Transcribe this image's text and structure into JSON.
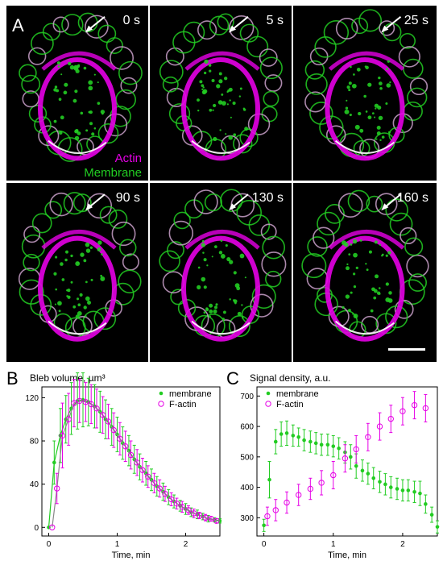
{
  "figure": {
    "panel_a_letter": "A",
    "panel_b_letter": "B",
    "panel_c_letter": "C",
    "channel_labels": {
      "actin": "Actin",
      "membrane": "Membrane"
    },
    "frames": [
      {
        "time": "0 s"
      },
      {
        "time": "5 s"
      },
      {
        "time": "25 s"
      },
      {
        "time": "90 s"
      },
      {
        "time": "130 s"
      },
      {
        "time": "160 s"
      }
    ]
  },
  "colors": {
    "membrane": "#22cc22",
    "actin": "#e600e6",
    "background": "#000000"
  },
  "chart_data": [
    {
      "type": "scatter",
      "title": "Bleb volume, µm³",
      "xlabel": "Time, min",
      "ylabel": "",
      "xlim": [
        -0.1,
        2.5
      ],
      "ylim": [
        -8,
        130
      ],
      "xticks": [
        "0",
        "1",
        "2"
      ],
      "yticks": [
        "0",
        "40",
        "80",
        "120"
      ],
      "legend_position": "top-right",
      "series": [
        {
          "name": "membrane",
          "marker": "filled-circle",
          "x": [
            0.0,
            0.08,
            0.17,
            0.25,
            0.33,
            0.42,
            0.5,
            0.58,
            0.67,
            0.75,
            0.83,
            0.92,
            1.0,
            1.08,
            1.17,
            1.25,
            1.33,
            1.42,
            1.5,
            1.58,
            1.67,
            1.75,
            1.83,
            1.92,
            2.0,
            2.08,
            2.17,
            2.25,
            2.33,
            2.42,
            2.5
          ],
          "y": [
            0,
            60,
            85,
            100,
            110,
            117,
            118,
            116,
            112,
            107,
            100,
            93,
            86,
            78,
            71,
            63,
            56,
            50,
            44,
            38,
            33,
            28,
            24,
            20,
            17,
            14,
            12,
            10,
            8,
            7,
            6
          ],
          "err": [
            0,
            20,
            25,
            22,
            24,
            26,
            25,
            22,
            20,
            19,
            18,
            17,
            16,
            15,
            14,
            13,
            12,
            11,
            10,
            9,
            8,
            7,
            6,
            5,
            5,
            4,
            4,
            3,
            3,
            2,
            2
          ]
        },
        {
          "name": "F-actin",
          "marker": "open-circle",
          "x": [
            0.05,
            0.12,
            0.2,
            0.29,
            0.37,
            0.45,
            0.54,
            0.62,
            0.7,
            0.79,
            0.87,
            0.95,
            1.04,
            1.12,
            1.2,
            1.29,
            1.37,
            1.45,
            1.54,
            1.62,
            1.7,
            1.79,
            1.87,
            1.95,
            2.04,
            2.12,
            2.2,
            2.29,
            2.37,
            2.45
          ],
          "y": [
            0,
            36,
            85,
            100,
            115,
            117,
            116,
            114,
            110,
            104,
            98,
            90,
            82,
            75,
            67,
            60,
            53,
            47,
            41,
            36,
            31,
            26,
            22,
            19,
            16,
            13,
            11,
            9,
            8,
            6
          ],
          "err": [
            0,
            14,
            30,
            24,
            22,
            20,
            18,
            18,
            18,
            17,
            16,
            16,
            15,
            14,
            13,
            12,
            11,
            10,
            9,
            8,
            7,
            6,
            5,
            5,
            4,
            4,
            3,
            3,
            2,
            2
          ]
        }
      ]
    },
    {
      "type": "scatter",
      "title": "Signal density, a.u.",
      "xlabel": "Time, min",
      "ylabel": "",
      "xlim": [
        -0.1,
        2.5
      ],
      "ylim": [
        240,
        730
      ],
      "xticks": [
        "0",
        "1",
        "2"
      ],
      "yticks": [
        "300",
        "400",
        "500",
        "600",
        "700"
      ],
      "legend_position": "top-left",
      "series": [
        {
          "name": "membrane",
          "marker": "filled-circle",
          "x": [
            0.0,
            0.08,
            0.17,
            0.25,
            0.33,
            0.42,
            0.5,
            0.58,
            0.67,
            0.75,
            0.83,
            0.92,
            1.0,
            1.08,
            1.17,
            1.25,
            1.33,
            1.42,
            1.5,
            1.58,
            1.67,
            1.75,
            1.83,
            1.92,
            2.0,
            2.08,
            2.17,
            2.25,
            2.33,
            2.42,
            2.5
          ],
          "y": [
            275,
            425,
            550,
            575,
            578,
            570,
            565,
            555,
            550,
            545,
            540,
            540,
            535,
            528,
            515,
            500,
            470,
            455,
            445,
            430,
            418,
            410,
            400,
            395,
            390,
            390,
            385,
            380,
            345,
            310,
            270
          ],
          "err": [
            20,
            60,
            40,
            40,
            40,
            35,
            30,
            35,
            35,
            35,
            35,
            35,
            35,
            35,
            35,
            40,
            40,
            35,
            35,
            35,
            35,
            35,
            35,
            35,
            35,
            35,
            35,
            40,
            30,
            25,
            20
          ]
        },
        {
          "name": "F-actin",
          "marker": "open-circle",
          "x": [
            0.05,
            0.17,
            0.33,
            0.5,
            0.67,
            0.83,
            1.0,
            1.17,
            1.33,
            1.5,
            1.67,
            1.83,
            2.0,
            2.17,
            2.33
          ],
          "y": [
            305,
            325,
            350,
            375,
            395,
            415,
            440,
            495,
            525,
            565,
            600,
            625,
            650,
            670,
            660
          ],
          "err": [
            30,
            35,
            35,
            35,
            35,
            40,
            45,
            45,
            45,
            45,
            45,
            45,
            45,
            45,
            45
          ]
        }
      ]
    }
  ]
}
